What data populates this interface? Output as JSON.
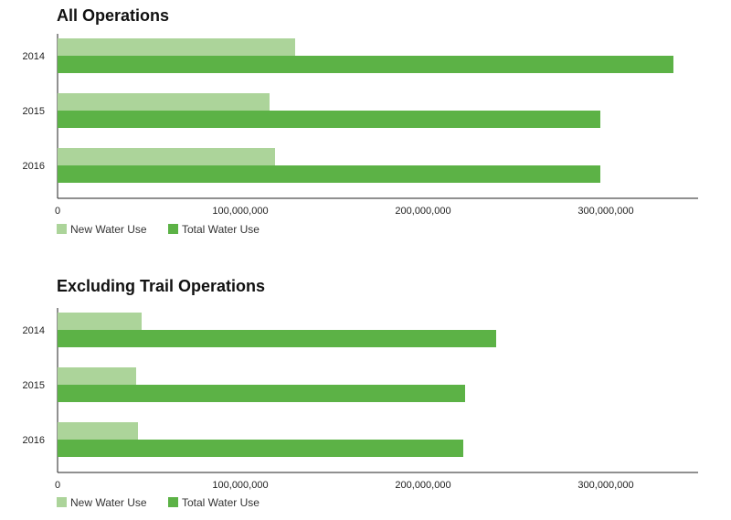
{
  "colors": {
    "new": "#acd49a",
    "total": "#5cb246",
    "axis": "#222222"
  },
  "chart_data": [
    {
      "type": "bar",
      "orientation": "horizontal",
      "title": "All Operations",
      "categories": [
        "2014",
        "2015",
        "2016"
      ],
      "series": [
        {
          "name": "New Water Use",
          "values": [
            130000000,
            116000000,
            119000000
          ]
        },
        {
          "name": "Total Water Use",
          "values": [
            337000000,
            297000000,
            297000000
          ]
        }
      ],
      "xlim": [
        0,
        350000000
      ],
      "xticks": [
        0,
        100000000,
        200000000,
        300000000
      ],
      "xtick_labels": [
        "0",
        "100,000,000",
        "200,000,000",
        "300,000,000"
      ],
      "legend_position": "bottom-left",
      "grid": false
    },
    {
      "type": "bar",
      "orientation": "horizontal",
      "title": "Excluding Trail Operations",
      "categories": [
        "2014",
        "2015",
        "2016"
      ],
      "series": [
        {
          "name": "New Water Use",
          "values": [
            46000000,
            43000000,
            44000000
          ]
        },
        {
          "name": "Total Water Use",
          "values": [
            240000000,
            223000000,
            222000000
          ]
        }
      ],
      "xlim": [
        0,
        350000000
      ],
      "xticks": [
        0,
        100000000,
        200000000,
        300000000
      ],
      "xtick_labels": [
        "0",
        "100,000,000",
        "200,000,000",
        "300,000,000"
      ],
      "legend_position": "bottom-left",
      "grid": false
    }
  ]
}
